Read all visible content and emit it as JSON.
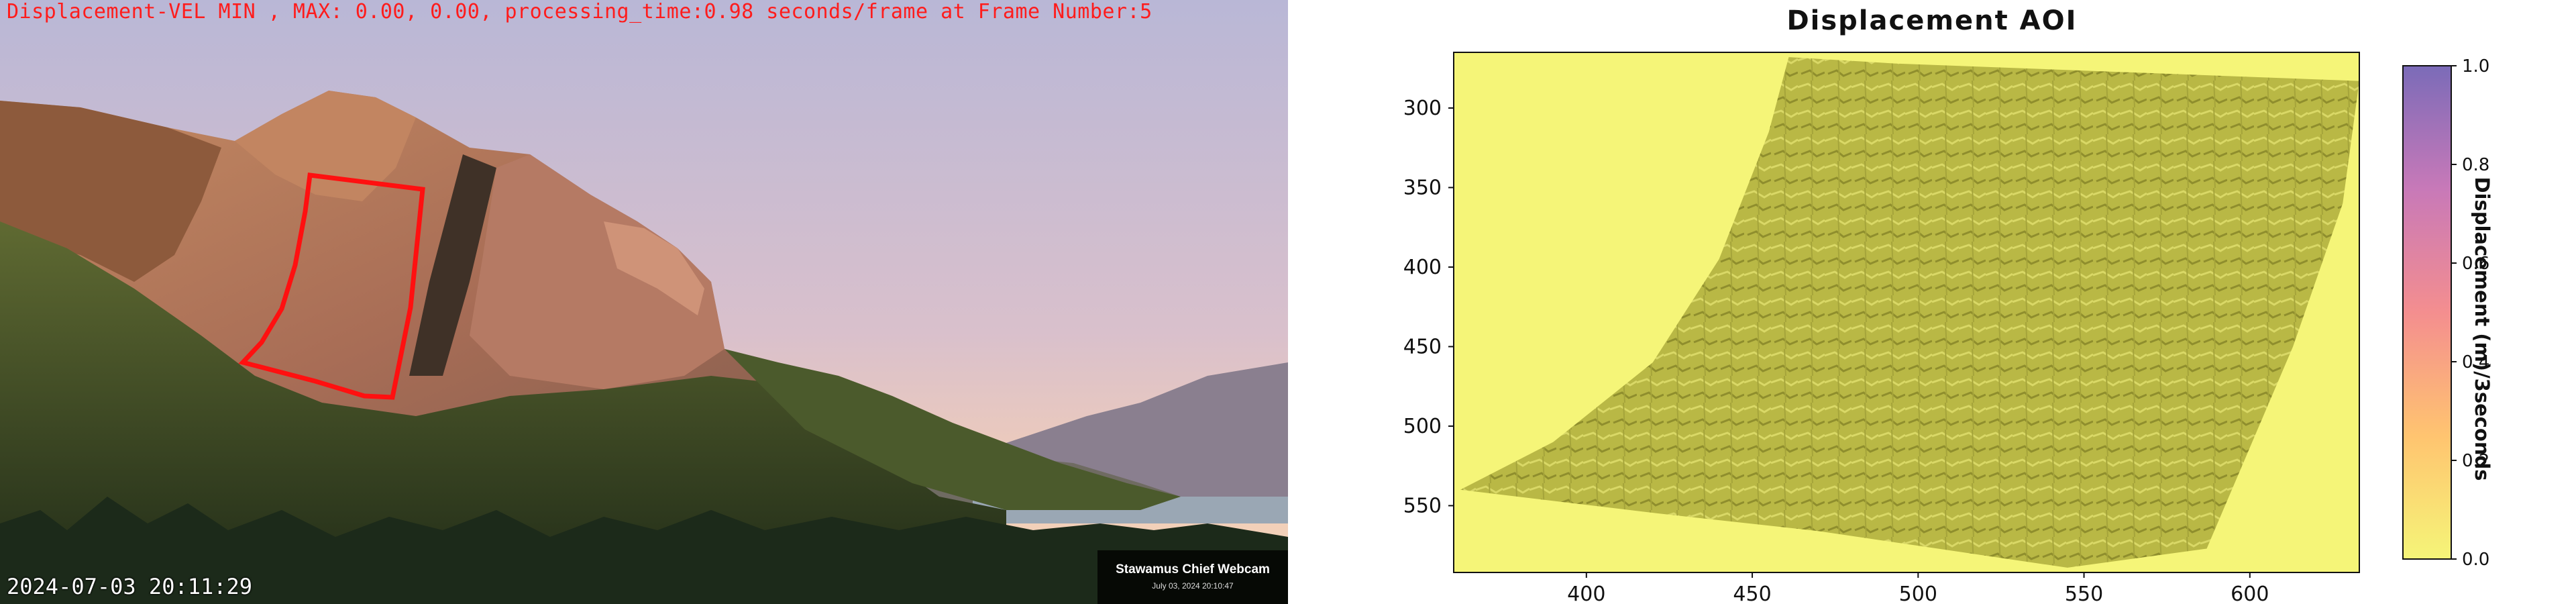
{
  "left_panel": {
    "overlay_text": "Displacement-VEL MIN , MAX: 0.00, 0.00, processing_time:0.98 seconds/frame at Frame Number:5",
    "timestamp": "2024-07-03 20:11:29",
    "watermark_title": "Stawamus Chief Webcam",
    "watermark_date": "July 03, 2024 20:10:47",
    "overlay_color": "#ff1c1c"
  },
  "right_panel": {
    "title": "Displacement AOI",
    "colorbar_label": "Displacement (m)/3seconds",
    "colormap": [
      "#f5f578",
      "#ffc470",
      "#f48e8f",
      "#c879b8",
      "#7b6bb8"
    ]
  },
  "chart_data": {
    "type": "heatmap",
    "title": "Displacement AOI",
    "xlabel": "",
    "ylabel": "",
    "x_ticks": [
      400,
      450,
      500,
      550,
      600
    ],
    "y_ticks": [
      300,
      350,
      400,
      450,
      500,
      550
    ],
    "xlim": [
      360,
      633
    ],
    "ylim": [
      592,
      265
    ],
    "colorbar": {
      "label": "Displacement (m)/3seconds",
      "range": [
        0.0,
        1.0
      ],
      "ticks": [
        "0.0",
        "0.2",
        "0.4",
        "0.6",
        "0.8",
        "1.0"
      ]
    },
    "aoi_polygon": [
      [
        461,
        268
      ],
      [
        493,
        272
      ],
      [
        633,
        283
      ],
      [
        628,
        360
      ],
      [
        613,
        450
      ],
      [
        587,
        577
      ],
      [
        545,
        589
      ],
      [
        470,
        566
      ],
      [
        422,
        555
      ],
      [
        362,
        540
      ],
      [
        390,
        510
      ],
      [
        420,
        460
      ],
      [
        440,
        395
      ],
      [
        455,
        315
      ]
    ],
    "min_value": 0.0,
    "max_value": 0.0
  }
}
